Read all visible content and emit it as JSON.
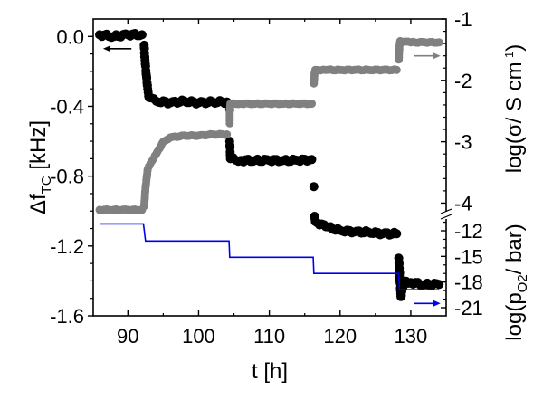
{
  "chart_data": {
    "type": "scatter",
    "title": "",
    "xlabel": "t [h]",
    "ylabel_left": "Δf",
    "ylabel_left_sub": "TC",
    "ylabel_left_unit": " [kHz]",
    "ylabel_right_upper_prefix": "log(σ/ S cm",
    "ylabel_right_upper_sup": "-1",
    "ylabel_right_upper_suffix": ")",
    "ylabel_right_lower_prefix": "log(p",
    "ylabel_right_lower_sub": "O2",
    "ylabel_right_lower_suffix": "/ bar)",
    "xlim": [
      85.1,
      135.0
    ],
    "ylim_left": [
      -1.6,
      0.1
    ],
    "ylim_right_upper": [
      -4.2,
      -1
    ],
    "ylim_right_lower": [
      -21,
      -11
    ],
    "x_ticks": [
      "90",
      "100",
      "110",
      "120",
      "130"
    ],
    "x_tick_values": [
      90,
      100,
      110,
      120,
      130
    ],
    "y_left_ticks": [
      "0.0",
      "-0.4",
      "-0.8",
      "-1.2",
      "-1.6"
    ],
    "y_left_tick_values": [
      0.0,
      -0.4,
      -0.8,
      -1.2,
      -1.6
    ],
    "y_right_upper_ticks": [
      "-1",
      "-2",
      "-3",
      "-4"
    ],
    "y_right_upper_tick_values": [
      -1,
      -2,
      -3,
      -4
    ],
    "y_right_lower_ticks": [
      "-12",
      "-15",
      "-18",
      "-21"
    ],
    "y_right_lower_tick_values": [
      -12,
      -15,
      -18,
      -21
    ],
    "grid": false,
    "series": [
      {
        "name": "Δf_TC",
        "axis": "left",
        "color": "#000000",
        "style": "markers",
        "segments": [
          {
            "x": [
              86.0,
              88.0,
              90.0,
              92.0
            ],
            "y": [
              0.01,
              0.0,
              0.01,
              0.01
            ]
          },
          {
            "x": [
              92.3,
              92.4,
              92.6,
              92.8,
              93.0,
              94.0,
              96.0,
              98.0,
              100.0,
              102.0,
              104.0
            ],
            "y": [
              -0.05,
              -0.12,
              -0.22,
              -0.3,
              -0.35,
              -0.37,
              -0.38,
              -0.37,
              -0.38,
              -0.375,
              -0.375
            ]
          },
          {
            "x": [
              104.4,
              104.4,
              104.5,
              106.0,
              108.0,
              110.0,
              112.0,
              114.0,
              116.0
            ],
            "y": [
              -0.42,
              -0.6,
              -0.7,
              -0.71,
              -0.71,
              -0.71,
              -0.71,
              -0.71,
              -0.705
            ]
          },
          {
            "x": [
              116.3,
              116.4,
              116.5,
              118.0,
              120.0,
              122.0,
              124.0,
              126.0,
              128.0
            ],
            "y": [
              -0.86,
              -1.03,
              -1.06,
              -1.09,
              -1.11,
              -1.12,
              -1.12,
              -1.13,
              -1.13
            ]
          },
          {
            "x": [
              128.3,
              128.4,
              128.6,
              129.0,
              130.0,
              132.0,
              134.0
            ],
            "y": [
              -1.27,
              -1.35,
              -1.49,
              -1.41,
              -1.41,
              -1.42,
              -1.42
            ]
          }
        ]
      },
      {
        "name": "log(σ)",
        "axis": "right_upper",
        "color": "#808080",
        "style": "markers",
        "segments": [
          {
            "x": [
              86.0,
              88.0,
              90.0,
              92.0
            ],
            "y": [
              -4.11,
              -4.11,
              -4.11,
              -4.11
            ]
          },
          {
            "x": [
              92.3,
              92.5,
              92.8,
              93.2,
              94.0,
              95.0,
              96.0,
              98.0,
              100.0,
              102.0,
              104.0
            ],
            "y": [
              -4.05,
              -3.75,
              -3.45,
              -3.35,
              -3.2,
              -3.0,
              -2.93,
              -2.9,
              -2.9,
              -2.88,
              -2.88
            ]
          },
          {
            "x": [
              104.4,
              104.4,
              104.5,
              106.0,
              108.0,
              110.0,
              112.0,
              114.0,
              116.0
            ],
            "y": [
              -2.7,
              -2.5,
              -2.38,
              -2.38,
              -2.38,
              -2.38,
              -2.38,
              -2.38,
              -2.38
            ]
          },
          {
            "x": [
              116.3,
              116.4,
              116.5,
              118.0,
              120.0,
              122.0,
              124.0,
              126.0,
              128.0
            ],
            "y": [
              -2.05,
              -1.88,
              -1.83,
              -1.83,
              -1.83,
              -1.83,
              -1.83,
              -1.83,
              -1.83
            ]
          },
          {
            "x": [
              128.3,
              128.4,
              128.5,
              130.0,
              132.0,
              134.0
            ],
            "y": [
              -1.66,
              -1.44,
              -1.36,
              -1.38,
              -1.38,
              -1.38
            ]
          }
        ]
      },
      {
        "name": "log(pO2)",
        "axis": "right_lower",
        "color": "#0000ee",
        "style": "line",
        "x": [
          86.0,
          92.2,
          92.5,
          104.3,
          104.4,
          116.2,
          116.3,
          128.3,
          128.4,
          134.0
        ],
        "y": [
          -11.2,
          -11.2,
          -13.2,
          -13.2,
          -15.1,
          -15.1,
          -17.0,
          -17.0,
          -18.9,
          -18.9
        ]
      }
    ],
    "annotations": [
      {
        "type": "arrow",
        "direction": "left",
        "color": "#000000",
        "x": [
          90.5,
          86.5
        ],
        "y_axis": "left",
        "y": -0.07
      },
      {
        "type": "arrow",
        "direction": "right",
        "color": "#808080",
        "x": [
          130.5,
          134.2
        ],
        "y_axis": "right_upper",
        "y": -1.6
      },
      {
        "type": "arrow",
        "direction": "right",
        "color": "#0000ee",
        "x": [
          130.5,
          134.2
        ],
        "y_axis": "right_lower",
        "y": -20.5
      }
    ]
  }
}
